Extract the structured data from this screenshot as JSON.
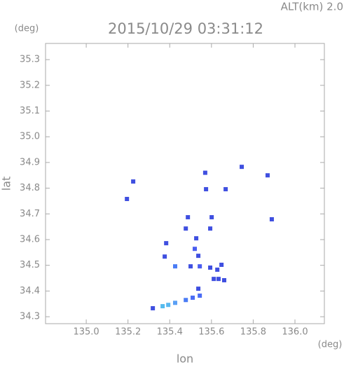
{
  "chart_data": {
    "type": "scatter",
    "title": "2015/10/29 03:31:12",
    "subtitle": "ALT(km) 2.0",
    "y_unit": "(deg)",
    "x_unit": "(deg)",
    "x_label": "lon",
    "y_label": "lat",
    "xlim": [
      134.805,
      136.141
    ],
    "ylim": [
      34.273,
      35.363
    ],
    "xticks": [
      {
        "value": 135,
        "label": "135.0"
      },
      135.2,
      135.4,
      135.6,
      135.8,
      {
        "value": 136,
        "label": "136.0"
      }
    ],
    "yticks": [
      34.3,
      34.4,
      34.5,
      34.6,
      34.7,
      34.8,
      34.9,
      {
        "value": 35,
        "label": "35.0"
      },
      35.1,
      35.2,
      35.3
    ],
    "x": [
      135.195,
      135.225,
      135.57,
      135.574,
      135.668,
      135.745,
      135.869,
      135.889,
      135.487,
      135.477,
      135.601,
      135.594,
      135.527,
      135.52,
      135.537,
      135.5,
      135.544,
      135.594,
      135.628,
      135.634,
      135.611,
      135.537,
      135.544,
      135.51,
      135.477,
      135.426,
      135.393,
      135.366,
      135.319,
      135.383,
      135.426,
      135.376,
      135.661,
      135.648
    ],
    "values": [
      34.758,
      34.826,
      34.86,
      34.796,
      34.796,
      34.883,
      34.85,
      34.679,
      34.687,
      34.643,
      34.687,
      34.643,
      34.605,
      34.564,
      34.537,
      34.496,
      34.496,
      34.491,
      34.483,
      34.447,
      34.447,
      34.409,
      34.382,
      34.374,
      34.365,
      34.354,
      34.346,
      34.341,
      34.333,
      34.586,
      34.496,
      34.534,
      34.442,
      34.502
    ],
    "colors": [
      "#3f4fe0",
      "#3f4fe0",
      "#3f4fe0",
      "#3f4fe0",
      "#3f4fe0",
      "#3f4fe0",
      "#3f4fe0",
      "#3f4fe0",
      "#3f4fe0",
      "#3f4fe0",
      "#3f4fe0",
      "#3f4fe0",
      "#3f4fe0",
      "#4a5cf0",
      "#3f4fe0",
      "#3f4fe0",
      "#4a5cf0",
      "#3f4fe0",
      "#3f4fe0",
      "#3f4fe0",
      "#3f4fe0",
      "#3f4fe0",
      "#4a6cf5",
      "#4a6cf5",
      "#4a7cf5",
      "#5aa0f5",
      "#5ab8f0",
      "#55bbee",
      "#3f4fe0",
      "#3f4fe0",
      "#4a7cf5",
      "#3f4fe0",
      "#3f4fe0",
      "#3f4fe0"
    ]
  }
}
